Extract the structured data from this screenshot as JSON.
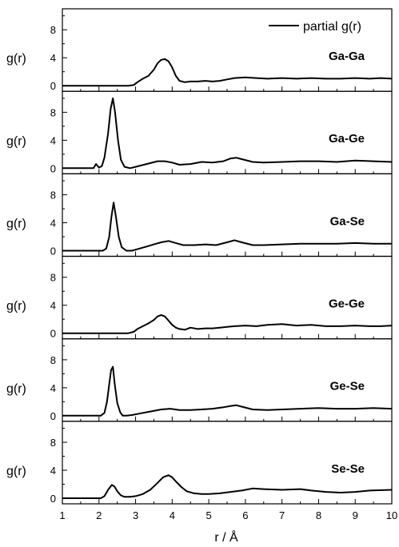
{
  "chart_data": {
    "type": "line",
    "legend": "partial g(r)",
    "legend_position": "top-right",
    "xlabel": "r / Å",
    "ylabel": "g(r)",
    "xlim": [
      1,
      10
    ],
    "x_ticks": [
      "1",
      "2",
      "3",
      "4",
      "5",
      "6",
      "7",
      "8",
      "9",
      "10"
    ],
    "y_ticks": [
      "0",
      "4",
      "8"
    ],
    "panels": [
      {
        "label": "Ga-Ga",
        "ylim": [
          -0.8,
          11
        ],
        "x": [
          1.0,
          2.8,
          2.95,
          3.05,
          3.2,
          3.35,
          3.5,
          3.6,
          3.7,
          3.8,
          3.9,
          4.0,
          4.1,
          4.2,
          4.35,
          4.5,
          4.7,
          4.9,
          5.1,
          5.3,
          5.5,
          5.7,
          6.0,
          6.3,
          6.6,
          7.0,
          7.4,
          7.8,
          8.2,
          8.6,
          9.0,
          9.4,
          9.7,
          10.0
        ],
        "y": [
          0.0,
          0.0,
          0.1,
          0.5,
          1.0,
          1.4,
          2.3,
          3.2,
          3.7,
          3.8,
          3.5,
          2.6,
          1.4,
          0.7,
          0.5,
          0.6,
          0.6,
          0.7,
          0.6,
          0.7,
          0.9,
          1.1,
          1.2,
          1.1,
          1.0,
          1.1,
          1.0,
          1.1,
          1.0,
          1.0,
          1.1,
          1.0,
          1.1,
          1.0
        ]
      },
      {
        "label": "Ga-Ge",
        "ylim": [
          -0.8,
          11
        ],
        "x": [
          1.0,
          1.85,
          1.92,
          2.0,
          2.08,
          2.15,
          2.25,
          2.32,
          2.38,
          2.44,
          2.52,
          2.6,
          2.7,
          2.85,
          3.0,
          3.3,
          3.6,
          3.8,
          4.0,
          4.2,
          4.5,
          4.8,
          5.1,
          5.4,
          5.6,
          5.75,
          5.9,
          6.2,
          6.5,
          7.0,
          7.5,
          8.0,
          8.5,
          9.0,
          9.5,
          10.0
        ],
        "y": [
          0.0,
          0.0,
          0.6,
          0.1,
          0.3,
          1.5,
          5.0,
          8.5,
          10.0,
          8.0,
          4.0,
          1.2,
          0.2,
          0.0,
          0.2,
          0.6,
          1.0,
          1.0,
          0.8,
          0.5,
          0.6,
          0.9,
          0.8,
          1.0,
          1.4,
          1.5,
          1.3,
          0.9,
          0.8,
          0.9,
          1.0,
          1.0,
          0.9,
          1.1,
          1.0,
          0.9
        ]
      },
      {
        "label": "Ga-Se",
        "ylim": [
          -0.8,
          11
        ],
        "x": [
          1.0,
          2.1,
          2.2,
          2.28,
          2.34,
          2.4,
          2.46,
          2.54,
          2.62,
          2.75,
          2.9,
          3.1,
          3.3,
          3.5,
          3.7,
          3.9,
          4.1,
          4.3,
          4.6,
          4.9,
          5.2,
          5.5,
          5.7,
          5.9,
          6.2,
          6.5,
          7.0,
          7.5,
          8.0,
          8.5,
          9.0,
          9.5,
          10.0
        ],
        "y": [
          0.0,
          0.0,
          0.3,
          2.0,
          4.8,
          6.9,
          5.0,
          2.0,
          0.5,
          0.0,
          0.0,
          0.3,
          0.6,
          0.9,
          1.2,
          1.4,
          1.1,
          0.8,
          0.8,
          0.9,
          0.8,
          1.2,
          1.5,
          1.2,
          0.8,
          0.8,
          0.9,
          1.0,
          1.0,
          1.0,
          1.1,
          1.0,
          1.0
        ]
      },
      {
        "label": "Ge-Ge",
        "ylim": [
          -0.8,
          11
        ],
        "x": [
          1.0,
          2.8,
          2.95,
          3.05,
          3.2,
          3.35,
          3.5,
          3.6,
          3.7,
          3.8,
          3.9,
          4.0,
          4.1,
          4.2,
          4.35,
          4.5,
          4.7,
          4.9,
          5.1,
          5.3,
          5.5,
          5.7,
          6.0,
          6.3,
          6.6,
          7.0,
          7.4,
          7.8,
          8.2,
          8.6,
          9.0,
          9.4,
          9.7,
          10.0
        ],
        "y": [
          0.0,
          0.0,
          0.2,
          0.6,
          1.0,
          1.4,
          1.9,
          2.4,
          2.6,
          2.4,
          1.8,
          1.2,
          0.8,
          0.6,
          0.5,
          0.8,
          0.6,
          0.7,
          0.7,
          0.8,
          0.9,
          1.0,
          1.1,
          1.0,
          1.2,
          1.3,
          1.1,
          1.2,
          1.0,
          1.0,
          1.1,
          1.0,
          1.0,
          1.1
        ]
      },
      {
        "label": "Ge-Se",
        "ylim": [
          -0.8,
          11
        ],
        "x": [
          1.0,
          2.05,
          2.15,
          2.22,
          2.28,
          2.33,
          2.38,
          2.43,
          2.5,
          2.58,
          2.65,
          2.75,
          2.9,
          3.1,
          3.4,
          3.7,
          3.95,
          4.2,
          4.5,
          4.8,
          5.1,
          5.4,
          5.6,
          5.75,
          5.9,
          6.2,
          6.6,
          7.0,
          7.5,
          8.0,
          8.5,
          9.0,
          9.5,
          10.0
        ],
        "y": [
          0.0,
          0.0,
          0.4,
          2.0,
          4.5,
          6.5,
          7.0,
          4.5,
          1.8,
          0.5,
          0.0,
          0.0,
          0.1,
          0.3,
          0.6,
          0.9,
          1.0,
          0.8,
          0.8,
          0.9,
          1.0,
          1.2,
          1.4,
          1.5,
          1.3,
          0.9,
          0.8,
          0.9,
          1.0,
          1.1,
          1.0,
          1.0,
          1.1,
          1.0
        ]
      },
      {
        "label": "Se-Se",
        "ylim": [
          -0.8,
          11
        ],
        "x": [
          1.0,
          2.05,
          2.15,
          2.25,
          2.35,
          2.42,
          2.5,
          2.6,
          2.7,
          2.85,
          3.0,
          3.2,
          3.4,
          3.6,
          3.75,
          3.9,
          4.0,
          4.1,
          4.25,
          4.4,
          4.6,
          4.8,
          5.0,
          5.3,
          5.6,
          5.9,
          6.2,
          6.5,
          7.0,
          7.5,
          7.8,
          8.2,
          8.6,
          9.0,
          9.4,
          10.0
        ],
        "y": [
          0.0,
          0.0,
          0.3,
          1.2,
          1.9,
          1.7,
          1.0,
          0.4,
          0.2,
          0.2,
          0.3,
          0.6,
          1.2,
          2.2,
          3.0,
          3.3,
          3.0,
          2.4,
          1.6,
          1.0,
          0.7,
          0.6,
          0.6,
          0.7,
          0.9,
          1.1,
          1.4,
          1.3,
          1.2,
          1.3,
          1.1,
          0.9,
          0.8,
          0.9,
          1.1,
          1.2
        ]
      }
    ]
  }
}
